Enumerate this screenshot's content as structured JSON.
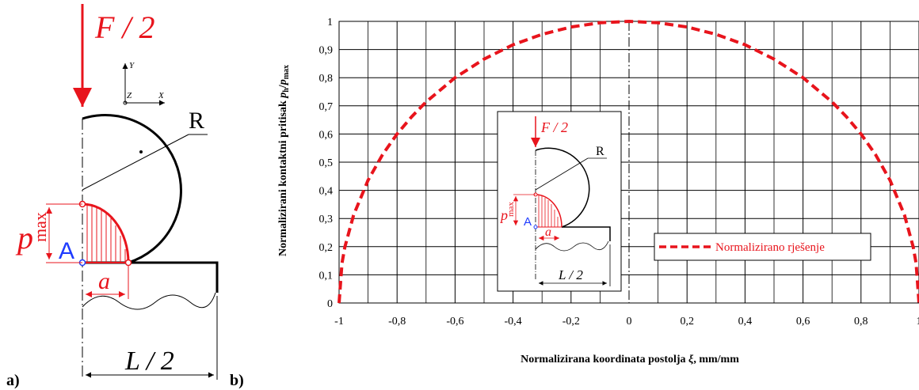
{
  "left_panel": {
    "panel_label": "a)",
    "force_label": "F / 2",
    "radius_label": "R",
    "pressure_symbol": "p",
    "pressure_subscript": "max",
    "point_label": "A",
    "half_width_label": "a",
    "half_length_label": "L / 2",
    "axes": {
      "y": "Y",
      "z": "Z",
      "x": "X"
    }
  },
  "right_panel": {
    "panel_label": "b)",
    "inset": {
      "force_label": "F / 2",
      "radius_label": "R",
      "pressure_symbol": "p",
      "pressure_subscript": "max",
      "point_label": "A",
      "half_width_label": "a",
      "half_length_label": "L / 2"
    }
  },
  "chart_data": {
    "type": "line",
    "title": "",
    "xlabel_prefix": "Normalizirana koordinata postolja ",
    "xlabel_symbol": "ξ",
    "xlabel_suffix": ", mm/mm",
    "ylabel_prefix": "Normalizirani kontaktni pritisak ",
    "ylabel_p": "p",
    "ylabel_sub_h": "h",
    "ylabel_slash": "/",
    "ylabel_sub_max": "max",
    "xlim": [
      -1,
      1
    ],
    "ylim": [
      0,
      1
    ],
    "xticks": [
      -1,
      -0.8,
      -0.6,
      -0.4,
      -0.2,
      0,
      0.2,
      0.4,
      0.6,
      0.8,
      1
    ],
    "xtick_labels": [
      "-1",
      "-0,8",
      "-0,6",
      "-0,4",
      "-0,2",
      "0",
      "0,2",
      "0,4",
      "0,6",
      "0,8",
      "1"
    ],
    "yticks": [
      0,
      0.1,
      0.2,
      0.3,
      0.4,
      0.5,
      0.6,
      0.7,
      0.8,
      0.9,
      1
    ],
    "ytick_labels": [
      "0",
      "0,1",
      "0,2",
      "0,3",
      "0,4",
      "0,5",
      "0,6",
      "0,7",
      "0,8",
      "0,9",
      "1"
    ],
    "grid": true,
    "legend_position": "center-right",
    "series": [
      {
        "name": "Normalizirano rješenje",
        "color": "#e8141c",
        "style": "dashed",
        "x": [
          -1,
          -0.99,
          -0.98,
          -0.95,
          -0.9,
          -0.85,
          -0.8,
          -0.75,
          -0.7,
          -0.6,
          -0.5,
          -0.4,
          -0.3,
          -0.2,
          -0.1,
          0,
          0.1,
          0.2,
          0.3,
          0.4,
          0.5,
          0.6,
          0.7,
          0.75,
          0.8,
          0.85,
          0.9,
          0.95,
          0.98,
          0.99,
          1
        ],
        "y": [
          0,
          0.141,
          0.199,
          0.312,
          0.436,
          0.527,
          0.6,
          0.661,
          0.714,
          0.8,
          0.866,
          0.917,
          0.954,
          0.98,
          0.995,
          1,
          0.995,
          0.98,
          0.954,
          0.917,
          0.866,
          0.8,
          0.714,
          0.661,
          0.6,
          0.527,
          0.436,
          0.312,
          0.199,
          0.141,
          0
        ]
      }
    ]
  }
}
